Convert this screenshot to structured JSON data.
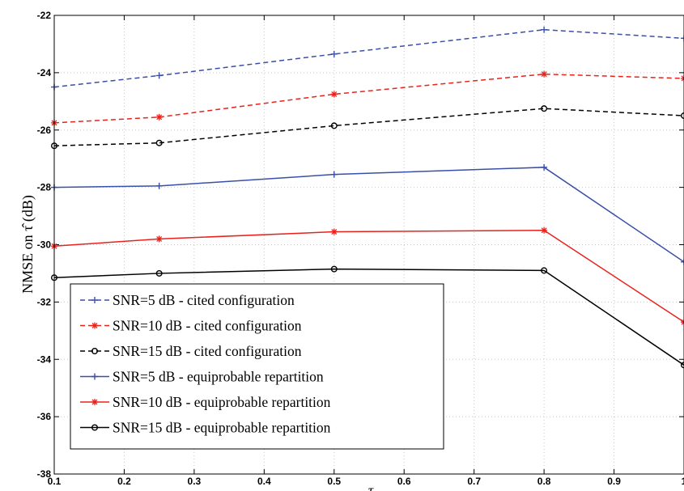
{
  "chart_data": {
    "type": "line",
    "title": "",
    "xlabel": "τ",
    "ylabel": "NMSE on τ̂ (dB)",
    "xlim": [
      0.1,
      1
    ],
    "ylim": [
      -38,
      -22
    ],
    "xticks": [
      "0.1",
      "0.2",
      "0.3",
      "0.4",
      "0.5",
      "0.6",
      "0.7",
      "0.8",
      "0.9",
      "1"
    ],
    "yticks": [
      "-22",
      "-24",
      "-26",
      "-28",
      "-30",
      "-32",
      "-34",
      "-36",
      "-38"
    ],
    "grid": true,
    "legend_position": "bottom-left",
    "x": [
      0.1,
      0.25,
      0.5,
      0.8,
      1.0
    ],
    "series": [
      {
        "name": "SNR=5 dB - cited configuration",
        "color": "#3a4fa8",
        "dash": "dashed",
        "marker": "plus",
        "values": [
          -24.5,
          -24.1,
          -23.35,
          -22.5,
          -22.8
        ]
      },
      {
        "name": "SNR=10 dB - cited configuration",
        "color": "#e8231c",
        "dash": "dashed",
        "marker": "star",
        "values": [
          -25.75,
          -25.55,
          -24.75,
          -24.05,
          -24.2
        ]
      },
      {
        "name": "SNR=15 dB - cited configuration",
        "color": "#000000",
        "dash": "dashed",
        "marker": "circle",
        "values": [
          -26.55,
          -26.45,
          -25.85,
          -25.25,
          -25.5
        ]
      },
      {
        "name": "SNR=5 dB - equiprobable repartition",
        "color": "#3a4fa8",
        "dash": "solid",
        "marker": "plus",
        "values": [
          -28.0,
          -27.95,
          -27.55,
          -27.3,
          -30.6
        ]
      },
      {
        "name": "SNR=10 dB - equiprobable repartition",
        "color": "#e8231c",
        "dash": "solid",
        "marker": "star",
        "values": [
          -30.05,
          -29.8,
          -29.55,
          -29.5,
          -32.7
        ]
      },
      {
        "name": "SNR=15 dB - equiprobable repartition",
        "color": "#000000",
        "dash": "solid",
        "marker": "circle",
        "values": [
          -31.15,
          -31.0,
          -30.85,
          -30.9,
          -34.2
        ]
      }
    ]
  }
}
